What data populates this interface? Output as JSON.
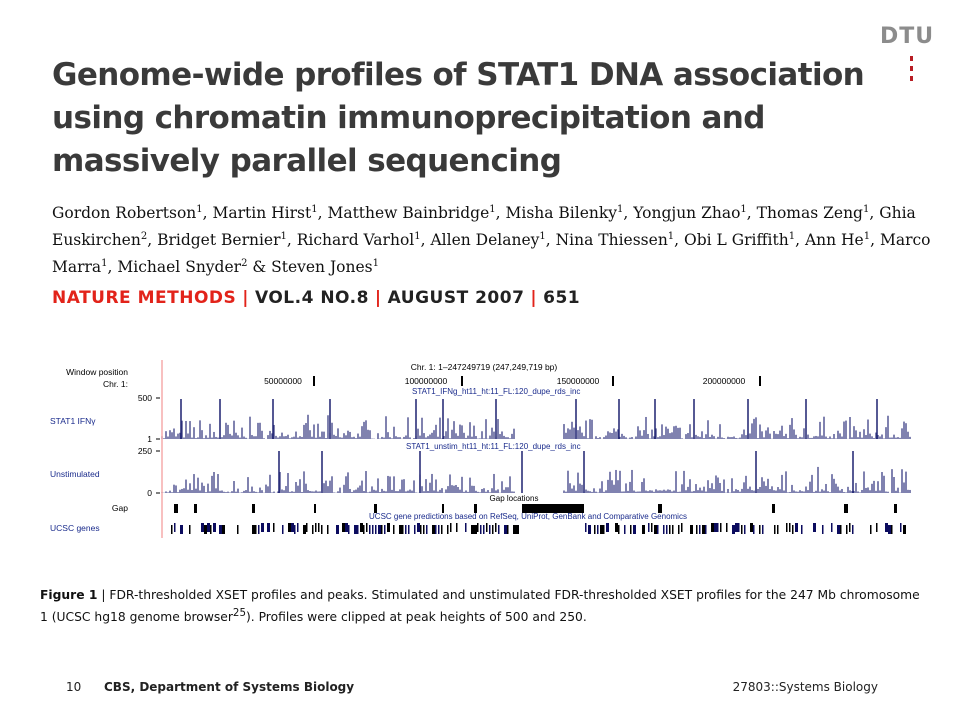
{
  "logo": {
    "text": "DTU"
  },
  "title": "Genome-wide profiles of STAT1 DNA association using chromatin immunoprecipitation and massively parallel sequencing",
  "authors": [
    {
      "name": "Gordon Robertson",
      "sup": "1"
    },
    {
      "name": "Martin Hirst",
      "sup": "1"
    },
    {
      "name": "Matthew Bainbridge",
      "sup": "1"
    },
    {
      "name": "Misha Bilenky",
      "sup": "1"
    },
    {
      "name": "Yongjun Zhao",
      "sup": "1"
    },
    {
      "name": "Thomas Zeng",
      "sup": "1"
    },
    {
      "name": "Ghia Euskirchen",
      "sup": "2"
    },
    {
      "name": "Bridget Bernier",
      "sup": "1"
    },
    {
      "name": "Richard Varhol",
      "sup": "1"
    },
    {
      "name": "Allen Delaney",
      "sup": "1"
    },
    {
      "name": "Nina Thiessen",
      "sup": "1"
    },
    {
      "name": "Obi L Griffith",
      "sup": "1"
    },
    {
      "name": "Ann He",
      "sup": "1"
    },
    {
      "name": "Marco Marra",
      "sup": "1"
    },
    {
      "name": "Michael Snyder",
      "sup": "2"
    },
    {
      "name": "Steven Jones",
      "sup": "1"
    }
  ],
  "journal": {
    "name": "NATURE METHODS",
    "volume": "VOL.4 NO.8",
    "date": "AUGUST 2007",
    "page": "651"
  },
  "figure": {
    "labels": {
      "window_position": "Window position",
      "chr": "Chr. 1:",
      "track1": "STAT1 IFNγ",
      "track2": "Unstimulated",
      "gap": "Gap",
      "ucsc": "UCSC genes"
    },
    "header": "Chr. 1: 1–247249719 (247,249,719 bp)",
    "positions": [
      "50000000",
      "100000000",
      "150000000",
      "200000000"
    ],
    "track1_name": "STAT1_IFNg_ht11_ht:11_FL:120_dupe_rds_inc",
    "track2_name": "STAT1_unstim_ht11_ht:11_FL:120_dupe_rds_inc",
    "track1_axis": {
      "top": "500",
      "bottom": "1"
    },
    "track2_axis": {
      "top": "250",
      "bottom": "0"
    },
    "gap_label": "Gap locations",
    "genes_label": "UCSC gene predictions based on RefSeq, UniProt, GenBank and Comparative Genomics",
    "colors": {
      "peaks": "#2b2f7a",
      "cursor": "#f08080"
    }
  },
  "caption": {
    "label": "Figure 1",
    "text": " | FDR-thresholded XSET profiles and peaks. Stimulated and unstimulated FDR-thresholded XSET profiles for the 247 Mb chromosome 1 (UCSC hg18 genome browser",
    "ref": "25",
    "tail": "). Profiles were clipped at peak heights of 500 and 250."
  },
  "footer": {
    "page": "10",
    "dept": "CBS, Department of Systems Biology",
    "course": "27803::Systems Biology"
  }
}
